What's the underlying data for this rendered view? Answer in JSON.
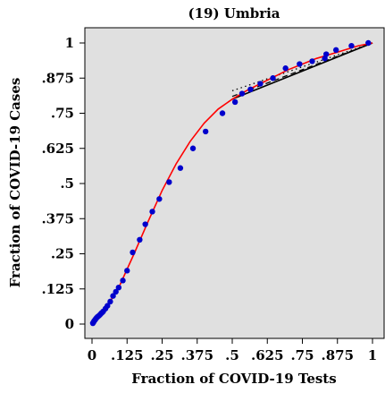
{
  "chart_data": {
    "type": "scatter",
    "title": "(19) Umbria",
    "xlabel": "Fraction of COVID-19 Tests",
    "ylabel": "Fraction of COVID-19 Cases",
    "xlim": [
      0,
      1
    ],
    "ylim": [
      0,
      1
    ],
    "x_ticks": [
      "0",
      ".125",
      ".25",
      ".375",
      ".5",
      ".625",
      ".75",
      ".875",
      "1"
    ],
    "y_ticks": [
      "0",
      ".125",
      ".25",
      ".375",
      ".5",
      ".625",
      ".75",
      ".875",
      "1"
    ],
    "x_tick_values": [
      0,
      0.125,
      0.25,
      0.375,
      0.5,
      0.625,
      0.75,
      0.875,
      1
    ],
    "y_tick_values": [
      0,
      0.125,
      0.25,
      0.375,
      0.5,
      0.625,
      0.75,
      0.875,
      1
    ],
    "grid": false,
    "legend": "none",
    "series": [
      {
        "kind": "points",
        "color": "#0000cc",
        "x": [
          0.003,
          0.005,
          0.007,
          0.01,
          0.013,
          0.016,
          0.02,
          0.025,
          0.03,
          0.035,
          0.04,
          0.048,
          0.055,
          0.065,
          0.075,
          0.085,
          0.095,
          0.11,
          0.125,
          0.145,
          0.17,
          0.19,
          0.215,
          0.24,
          0.275,
          0.315,
          0.36,
          0.405,
          0.465,
          0.51,
          0.535,
          0.565,
          0.6,
          0.645,
          0.69,
          0.74,
          0.785,
          0.83,
          0.835,
          0.87,
          0.925,
          0.985
        ],
        "y": [
          0.003,
          0.006,
          0.01,
          0.014,
          0.018,
          0.022,
          0.026,
          0.03,
          0.035,
          0.04,
          0.045,
          0.055,
          0.065,
          0.08,
          0.1,
          0.115,
          0.13,
          0.155,
          0.19,
          0.255,
          0.3,
          0.355,
          0.4,
          0.445,
          0.505,
          0.555,
          0.625,
          0.685,
          0.75,
          0.79,
          0.82,
          0.835,
          0.855,
          0.875,
          0.91,
          0.925,
          0.935,
          0.945,
          0.96,
          0.975,
          0.99,
          1.0
        ]
      },
      {
        "kind": "fit-curve",
        "color": "#ff0000",
        "x": [
          0,
          0.05,
          0.1,
          0.15,
          0.2,
          0.25,
          0.3,
          0.35,
          0.4,
          0.45,
          0.5,
          0.55,
          0.6,
          0.65,
          0.7,
          0.75,
          0.8,
          0.85,
          0.9,
          0.95,
          1
        ],
        "y": [
          0,
          0.055,
          0.14,
          0.25,
          0.365,
          0.475,
          0.57,
          0.65,
          0.715,
          0.765,
          0.8,
          0.83,
          0.855,
          0.88,
          0.905,
          0.925,
          0.945,
          0.96,
          0.975,
          0.99,
          1
        ]
      },
      {
        "kind": "solid-line",
        "color": "#000000",
        "x": [
          0.5,
          1
        ],
        "y": [
          0.8,
          1
        ]
      },
      {
        "kind": "dashed-line",
        "color": "#000000",
        "x": [
          0.5,
          1
        ],
        "y": [
          0.81,
          1
        ]
      },
      {
        "kind": "dotted-line",
        "color": "#000000",
        "x": [
          0.5,
          1
        ],
        "y": [
          0.83,
          1
        ]
      }
    ]
  }
}
